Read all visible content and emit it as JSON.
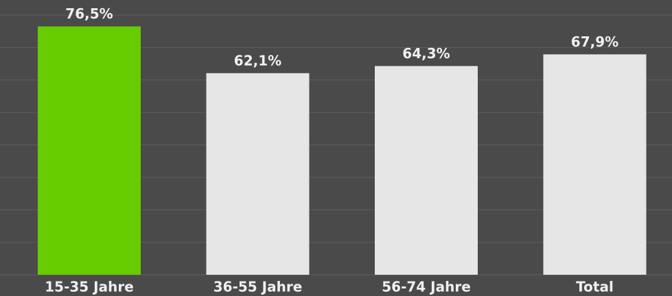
{
  "chart_data": {
    "type": "bar",
    "categories": [
      "15-35 Jahre",
      "36-55 Jahre",
      "56-74 Jahre",
      "Total"
    ],
    "values": [
      76.5,
      62.1,
      64.3,
      67.9
    ],
    "value_labels": [
      "76,5%",
      "62,1%",
      "64,3%",
      "67,9%"
    ],
    "colors": [
      "#66cc00",
      "#e6e6e6",
      "#e6e6e6",
      "#e6e6e6"
    ],
    "ylim": [
      0,
      80
    ],
    "yticks": [
      0,
      10,
      20,
      30,
      40,
      50,
      60,
      70,
      80
    ],
    "grid": true
  }
}
